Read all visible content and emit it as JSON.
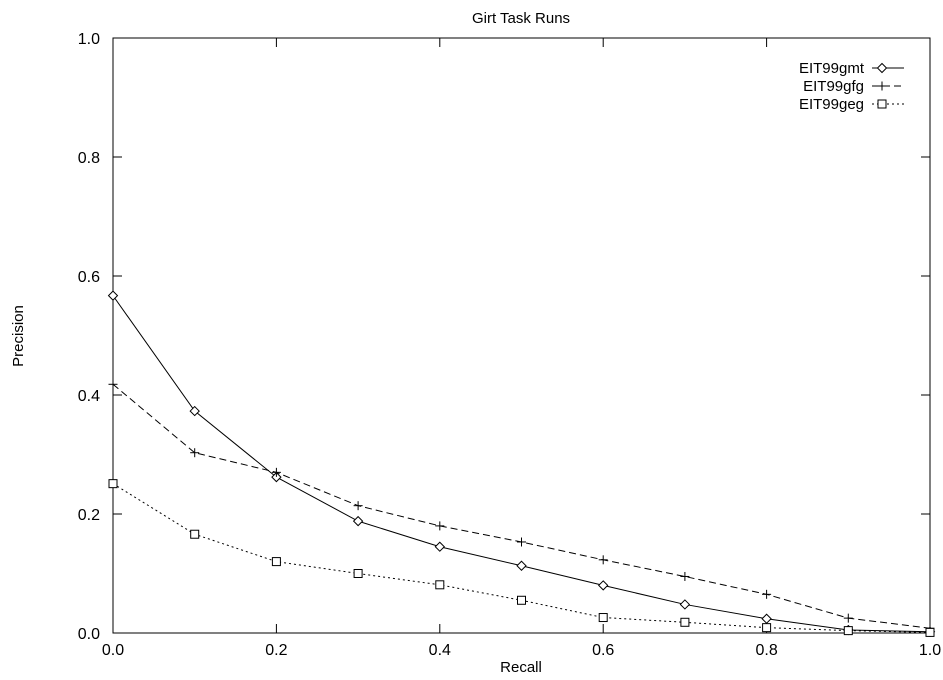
{
  "chart_data": {
    "type": "line",
    "title": "Girt Task Runs",
    "xlabel": "Recall",
    "ylabel": "Precision",
    "xlim": [
      0.0,
      1.0
    ],
    "ylim": [
      0.0,
      1.0
    ],
    "grid": false,
    "legend_position": "top-right",
    "x_ticks": [
      "0.0",
      "0.2",
      "0.4",
      "0.6",
      "0.8",
      "1.0"
    ],
    "y_ticks": [
      "0.0",
      "0.2",
      "0.4",
      "0.6",
      "0.8",
      "1.0"
    ],
    "x": [
      0.0,
      0.1,
      0.2,
      0.3,
      0.4,
      0.5,
      0.6,
      0.7,
      0.8,
      0.9,
      1.0
    ],
    "series": [
      {
        "name": "EIT99gmt",
        "marker": "diamond",
        "line_style": "solid",
        "values": [
          0.567,
          0.373,
          0.262,
          0.188,
          0.145,
          0.113,
          0.08,
          0.048,
          0.024,
          0.005,
          0.002
        ]
      },
      {
        "name": "EIT99gfg",
        "marker": "plus",
        "line_style": "dashed",
        "values": [
          0.418,
          0.303,
          0.27,
          0.214,
          0.18,
          0.153,
          0.123,
          0.095,
          0.065,
          0.025,
          0.008
        ]
      },
      {
        "name": "EIT99geg",
        "marker": "square",
        "line_style": "dotted",
        "values": [
          0.251,
          0.166,
          0.12,
          0.1,
          0.081,
          0.055,
          0.026,
          0.018,
          0.009,
          0.004,
          0.001
        ]
      }
    ]
  }
}
